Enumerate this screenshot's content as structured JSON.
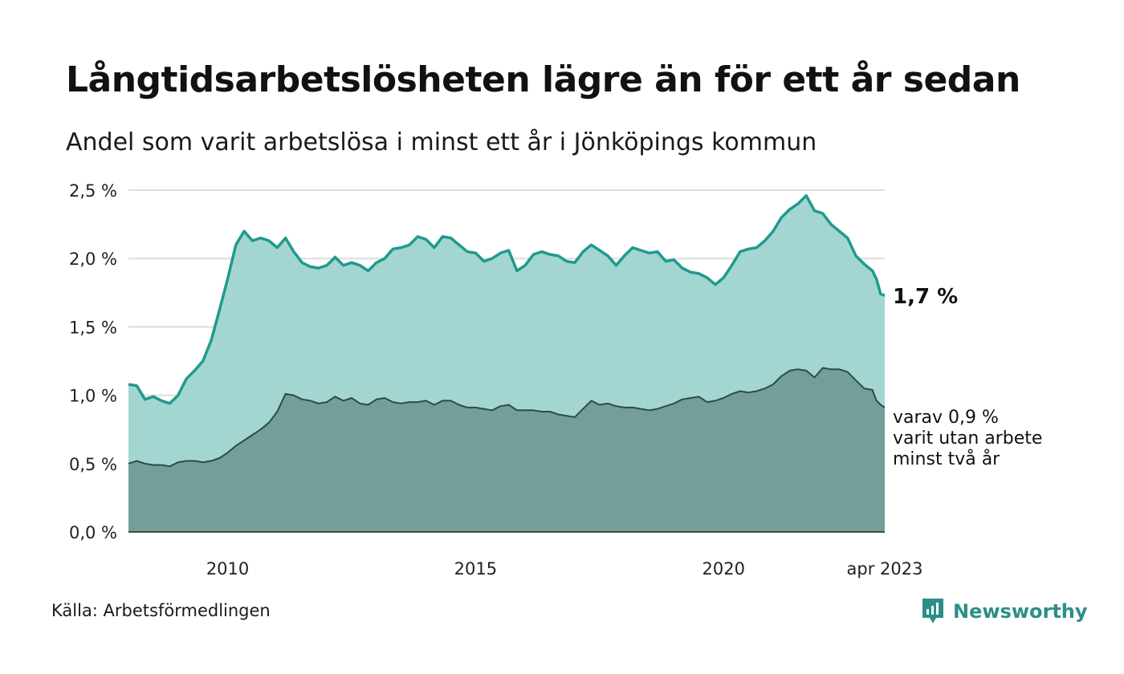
{
  "title": "Långtidsarbetslösheten lägre än för ett år sedan",
  "subtitle": "Andel som varit arbetslösa i minst ett år i Jönköpings kommun",
  "source": "Källa: Arbetsförmedlingen",
  "brand": "Newsworthy",
  "colors": {
    "long_line": "#1f9a8e",
    "long_fill": "#a3d6d0",
    "two_line": "#2f4a47",
    "two_fill": "#729f98",
    "grid": "#dddddd",
    "brand": "#2b8f87"
  },
  "chart_data": {
    "type": "area",
    "x_start": "2008-01",
    "x_end": "2023-04",
    "x_tick_labels": [
      "2010",
      "2015",
      "2020",
      "apr 2023"
    ],
    "x_tick_dates": [
      "2010-01",
      "2015-01",
      "2020-01",
      "2023-04"
    ],
    "y_tick_labels": [
      "0,0 %",
      "0,5 %",
      "1,0 %",
      "1,5 %",
      "2,0 %",
      "2,5 %"
    ],
    "y_ticks": [
      0,
      0.5,
      1.0,
      1.5,
      2.0,
      2.5
    ],
    "ylim": [
      0,
      2.5
    ],
    "grid": true,
    "end_labels": {
      "long": "1,7 %",
      "two_line1": "varav 0,9 %",
      "two_line2": "varit utan arbete",
      "two_line3": "minst två år"
    },
    "series": [
      {
        "key": "long",
        "points": [
          [
            "2008-01",
            1.08
          ],
          [
            "2008-03",
            1.07
          ],
          [
            "2008-05",
            0.97
          ],
          [
            "2008-07",
            0.99
          ],
          [
            "2008-09",
            0.96
          ],
          [
            "2008-11",
            0.94
          ],
          [
            "2009-01",
            1.0
          ],
          [
            "2009-03",
            1.12
          ],
          [
            "2009-05",
            1.18
          ],
          [
            "2009-07",
            1.25
          ],
          [
            "2009-09",
            1.4
          ],
          [
            "2009-11",
            1.62
          ],
          [
            "2010-01",
            1.85
          ],
          [
            "2010-03",
            2.1
          ],
          [
            "2010-05",
            2.2
          ],
          [
            "2010-07",
            2.13
          ],
          [
            "2010-09",
            2.15
          ],
          [
            "2010-11",
            2.13
          ],
          [
            "2011-01",
            2.08
          ],
          [
            "2011-03",
            2.15
          ],
          [
            "2011-05",
            2.05
          ],
          [
            "2011-07",
            1.97
          ],
          [
            "2011-09",
            1.94
          ],
          [
            "2011-11",
            1.93
          ],
          [
            "2012-01",
            1.95
          ],
          [
            "2012-03",
            2.01
          ],
          [
            "2012-05",
            1.95
          ],
          [
            "2012-07",
            1.97
          ],
          [
            "2012-09",
            1.95
          ],
          [
            "2012-11",
            1.91
          ],
          [
            "2013-01",
            1.97
          ],
          [
            "2013-03",
            2.0
          ],
          [
            "2013-05",
            2.07
          ],
          [
            "2013-07",
            2.08
          ],
          [
            "2013-09",
            2.1
          ],
          [
            "2013-11",
            2.16
          ],
          [
            "2014-01",
            2.14
          ],
          [
            "2014-03",
            2.08
          ],
          [
            "2014-05",
            2.16
          ],
          [
            "2014-07",
            2.15
          ],
          [
            "2014-09",
            2.1
          ],
          [
            "2014-11",
            2.05
          ],
          [
            "2015-01",
            2.04
          ],
          [
            "2015-03",
            1.98
          ],
          [
            "2015-05",
            2.0
          ],
          [
            "2015-07",
            2.04
          ],
          [
            "2015-09",
            2.06
          ],
          [
            "2015-11",
            1.91
          ],
          [
            "2016-01",
            1.95
          ],
          [
            "2016-03",
            2.03
          ],
          [
            "2016-05",
            2.05
          ],
          [
            "2016-07",
            2.03
          ],
          [
            "2016-09",
            2.02
          ],
          [
            "2016-11",
            1.98
          ],
          [
            "2017-01",
            1.97
          ],
          [
            "2017-03",
            2.05
          ],
          [
            "2017-05",
            2.1
          ],
          [
            "2017-07",
            2.06
          ],
          [
            "2017-09",
            2.02
          ],
          [
            "2017-11",
            1.95
          ],
          [
            "2018-01",
            2.02
          ],
          [
            "2018-03",
            2.08
          ],
          [
            "2018-05",
            2.06
          ],
          [
            "2018-07",
            2.04
          ],
          [
            "2018-09",
            2.05
          ],
          [
            "2018-11",
            1.98
          ],
          [
            "2019-01",
            1.99
          ],
          [
            "2019-03",
            1.93
          ],
          [
            "2019-05",
            1.9
          ],
          [
            "2019-07",
            1.89
          ],
          [
            "2019-09",
            1.86
          ],
          [
            "2019-11",
            1.81
          ],
          [
            "2020-01",
            1.86
          ],
          [
            "2020-03",
            1.95
          ],
          [
            "2020-05",
            2.05
          ],
          [
            "2020-07",
            2.07
          ],
          [
            "2020-09",
            2.08
          ],
          [
            "2020-11",
            2.13
          ],
          [
            "2021-01",
            2.2
          ],
          [
            "2021-03",
            2.3
          ],
          [
            "2021-05",
            2.36
          ],
          [
            "2021-07",
            2.4
          ],
          [
            "2021-09",
            2.46
          ],
          [
            "2021-11",
            2.35
          ],
          [
            "2022-01",
            2.33
          ],
          [
            "2022-03",
            2.25
          ],
          [
            "2022-05",
            2.2
          ],
          [
            "2022-07",
            2.15
          ],
          [
            "2022-09",
            2.02
          ],
          [
            "2022-11",
            1.96
          ],
          [
            "2023-01",
            1.91
          ],
          [
            "2023-02",
            1.85
          ],
          [
            "2023-03",
            1.74
          ],
          [
            "2023-04",
            1.73
          ]
        ]
      },
      {
        "key": "two",
        "points": [
          [
            "2008-01",
            0.5
          ],
          [
            "2008-03",
            0.52
          ],
          [
            "2008-05",
            0.5
          ],
          [
            "2008-07",
            0.49
          ],
          [
            "2008-09",
            0.49
          ],
          [
            "2008-11",
            0.48
          ],
          [
            "2009-01",
            0.51
          ],
          [
            "2009-03",
            0.52
          ],
          [
            "2009-05",
            0.52
          ],
          [
            "2009-07",
            0.51
          ],
          [
            "2009-09",
            0.52
          ],
          [
            "2009-11",
            0.54
          ],
          [
            "2010-01",
            0.58
          ],
          [
            "2010-03",
            0.63
          ],
          [
            "2010-05",
            0.67
          ],
          [
            "2010-07",
            0.71
          ],
          [
            "2010-09",
            0.75
          ],
          [
            "2010-11",
            0.8
          ],
          [
            "2011-01",
            0.88
          ],
          [
            "2011-03",
            1.01
          ],
          [
            "2011-05",
            1.0
          ],
          [
            "2011-07",
            0.97
          ],
          [
            "2011-09",
            0.96
          ],
          [
            "2011-11",
            0.94
          ],
          [
            "2012-01",
            0.95
          ],
          [
            "2012-03",
            0.99
          ],
          [
            "2012-05",
            0.96
          ],
          [
            "2012-07",
            0.98
          ],
          [
            "2012-09",
            0.94
          ],
          [
            "2012-11",
            0.93
          ],
          [
            "2013-01",
            0.97
          ],
          [
            "2013-03",
            0.98
          ],
          [
            "2013-05",
            0.95
          ],
          [
            "2013-07",
            0.94
          ],
          [
            "2013-09",
            0.95
          ],
          [
            "2013-11",
            0.95
          ],
          [
            "2014-01",
            0.96
          ],
          [
            "2014-03",
            0.93
          ],
          [
            "2014-05",
            0.96
          ],
          [
            "2014-07",
            0.96
          ],
          [
            "2014-09",
            0.93
          ],
          [
            "2014-11",
            0.91
          ],
          [
            "2015-01",
            0.91
          ],
          [
            "2015-03",
            0.9
          ],
          [
            "2015-05",
            0.89
          ],
          [
            "2015-07",
            0.92
          ],
          [
            "2015-09",
            0.93
          ],
          [
            "2015-11",
            0.89
          ],
          [
            "2016-01",
            0.89
          ],
          [
            "2016-03",
            0.89
          ],
          [
            "2016-05",
            0.88
          ],
          [
            "2016-07",
            0.88
          ],
          [
            "2016-09",
            0.86
          ],
          [
            "2016-11",
            0.85
          ],
          [
            "2017-01",
            0.84
          ],
          [
            "2017-03",
            0.9
          ],
          [
            "2017-05",
            0.96
          ],
          [
            "2017-07",
            0.93
          ],
          [
            "2017-09",
            0.94
          ],
          [
            "2017-11",
            0.92
          ],
          [
            "2018-01",
            0.91
          ],
          [
            "2018-03",
            0.91
          ],
          [
            "2018-05",
            0.9
          ],
          [
            "2018-07",
            0.89
          ],
          [
            "2018-09",
            0.9
          ],
          [
            "2018-11",
            0.92
          ],
          [
            "2019-01",
            0.94
          ],
          [
            "2019-03",
            0.97
          ],
          [
            "2019-05",
            0.98
          ],
          [
            "2019-07",
            0.99
          ],
          [
            "2019-09",
            0.95
          ],
          [
            "2019-11",
            0.96
          ],
          [
            "2020-01",
            0.98
          ],
          [
            "2020-03",
            1.01
          ],
          [
            "2020-05",
            1.03
          ],
          [
            "2020-07",
            1.02
          ],
          [
            "2020-09",
            1.03
          ],
          [
            "2020-11",
            1.05
          ],
          [
            "2021-01",
            1.08
          ],
          [
            "2021-03",
            1.14
          ],
          [
            "2021-05",
            1.18
          ],
          [
            "2021-07",
            1.19
          ],
          [
            "2021-09",
            1.18
          ],
          [
            "2021-11",
            1.13
          ],
          [
            "2022-01",
            1.2
          ],
          [
            "2022-03",
            1.19
          ],
          [
            "2022-05",
            1.19
          ],
          [
            "2022-07",
            1.17
          ],
          [
            "2022-09",
            1.11
          ],
          [
            "2022-11",
            1.05
          ],
          [
            "2023-01",
            1.04
          ],
          [
            "2023-02",
            0.96
          ],
          [
            "2023-03",
            0.93
          ],
          [
            "2023-04",
            0.91
          ]
        ]
      }
    ]
  }
}
